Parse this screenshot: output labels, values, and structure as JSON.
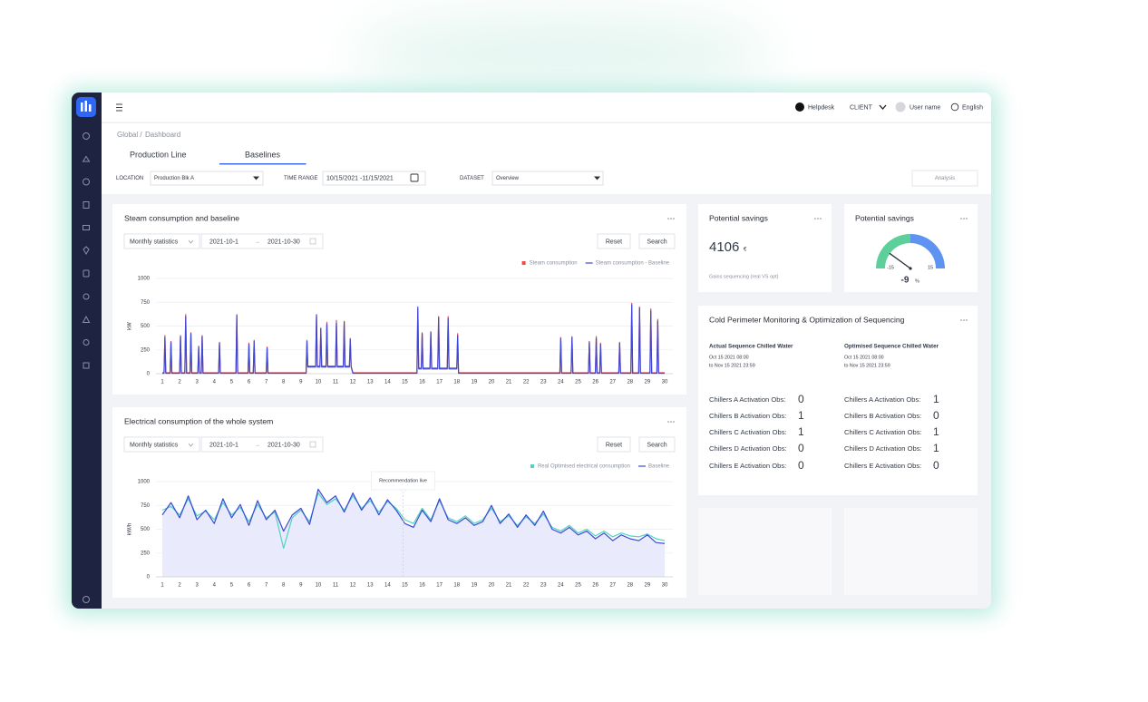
{
  "header": {
    "helpdesk": "Helpdesk",
    "client": "CLIENT",
    "user": "User name",
    "language": "English"
  },
  "breadcrumb": [
    "Global /",
    "Dashboard"
  ],
  "tabs": [
    "Production Line",
    "Baselines"
  ],
  "active_tab": 1,
  "filters": {
    "location_label": "LOCATION",
    "location": "Production Blk A",
    "time_label": "TIME RANGE",
    "time": "10/15/2021 -11/15/2021",
    "dataset_label": "DATASET",
    "dataset": "Overview",
    "analysis": "Analysis"
  },
  "savings": {
    "title": "Potential savings",
    "value": 4106,
    "unit": "€",
    "note": "Gains sequencing (real VS opt)"
  },
  "chart_data": [
    {
      "type": "line",
      "title": "Steam consumption and baseline",
      "controls": {
        "period": "Monthly statistics",
        "start": "2021-10-1",
        "separator": "→",
        "end": "2021-10-30",
        "reset": "Reset",
        "search": "Search"
      },
      "y_label": "kW",
      "legend": "top-right",
      "grid": true,
      "xlim": [
        1,
        30
      ],
      "xticks": [
        1,
        2,
        3,
        4,
        5,
        6,
        7,
        8,
        9,
        10,
        11,
        12,
        13,
        14,
        15,
        16,
        17,
        18,
        19,
        20,
        21,
        22,
        23,
        24,
        25,
        26,
        27,
        28,
        29,
        30
      ],
      "ylim": [
        0,
        1000
      ],
      "yticks": [
        0,
        250,
        500,
        750,
        1000
      ],
      "x": [
        1,
        1.1,
        1.15,
        1.2,
        1.45,
        1.5,
        1.55,
        2.0,
        2.05,
        2.1,
        2.3,
        2.35,
        2.4,
        2.6,
        2.65,
        2.7,
        3.05,
        3.1,
        3.15,
        3.25,
        3.3,
        3.35,
        4.25,
        4.3,
        4.35,
        5.25,
        5.3,
        5.35,
        5.95,
        6.0,
        6.05,
        6.25,
        6.3,
        6.35,
        7.0,
        7.05,
        7.1,
        9.3,
        9.35,
        9.4,
        9.85,
        9.9,
        9.95,
        10.1,
        10.15,
        10.2,
        10.45,
        10.5,
        10.55,
        11.0,
        11.05,
        11.1,
        11.45,
        11.5,
        11.55,
        11.8,
        11.85,
        11.9,
        12.0,
        15.6,
        15.7,
        15.75,
        15.8,
        15.95,
        16.0,
        16.05,
        16.45,
        16.5,
        16.55,
        16.9,
        16.95,
        17.0,
        17.45,
        17.5,
        17.55,
        18.0,
        18.05,
        18.1,
        23.95,
        24.0,
        24.05,
        24.6,
        24.65,
        24.7,
        25.6,
        25.65,
        25.7,
        26.0,
        26.05,
        26.1,
        26.25,
        26.3,
        26.35,
        27.35,
        27.4,
        27.45,
        28.05,
        28.1,
        28.15,
        28.5,
        28.55,
        28.6,
        29.15,
        29.2,
        29.25,
        29.55,
        29.6,
        29.65,
        30
      ],
      "series": [
        {
          "name": "Steam consumption",
          "color": "#ee4d45",
          "legend_marker": "square",
          "values": [
            10,
            10,
            400,
            10,
            10,
            340,
            10,
            10,
            400,
            10,
            10,
            620,
            10,
            10,
            430,
            10,
            10,
            290,
            10,
            10,
            400,
            10,
            10,
            330,
            10,
            10,
            620,
            10,
            10,
            320,
            10,
            10,
            350,
            10,
            10,
            280,
            10,
            10,
            350,
            80,
            80,
            600,
            80,
            80,
            480,
            80,
            80,
            540,
            80,
            80,
            560,
            80,
            80,
            550,
            80,
            80,
            370,
            80,
            10,
            10,
            10,
            680,
            60,
            60,
            430,
            60,
            60,
            430,
            60,
            60,
            600,
            60,
            60,
            600,
            60,
            60,
            420,
            10,
            10,
            380,
            10,
            10,
            390,
            10,
            10,
            340,
            10,
            10,
            390,
            10,
            10,
            320,
            10,
            10,
            330,
            10,
            10,
            740,
            10,
            10,
            700,
            10,
            10,
            680,
            10,
            10,
            570,
            10,
            10
          ]
        },
        {
          "name": "Steam consumption - Baseline",
          "color": "#3d48d6",
          "legend_marker": "line",
          "values": [
            5,
            5,
            380,
            5,
            5,
            330,
            5,
            5,
            390,
            5,
            5,
            600,
            5,
            5,
            420,
            5,
            5,
            280,
            5,
            5,
            390,
            5,
            5,
            320,
            5,
            5,
            610,
            5,
            5,
            310,
            5,
            5,
            340,
            5,
            5,
            270,
            5,
            5,
            340,
            70,
            70,
            620,
            70,
            70,
            470,
            70,
            70,
            520,
            70,
            70,
            530,
            70,
            70,
            540,
            70,
            70,
            360,
            70,
            5,
            5,
            5,
            700,
            50,
            50,
            420,
            50,
            50,
            440,
            50,
            50,
            590,
            50,
            50,
            580,
            50,
            50,
            400,
            5,
            5,
            370,
            5,
            5,
            380,
            5,
            5,
            330,
            5,
            5,
            370,
            5,
            5,
            310,
            5,
            5,
            320,
            5,
            5,
            720,
            5,
            5,
            690,
            5,
            5,
            660,
            5,
            5,
            550,
            5,
            5
          ]
        }
      ]
    },
    {
      "type": "line",
      "title": "Electrical consumption of the whole system",
      "controls": {
        "period": "Monthly statistics",
        "start": "2021-10-1",
        "separator": "→",
        "end": "2021-10-30",
        "reset": "Reset",
        "search": "Search"
      },
      "y_label": "kW/h",
      "legend": "top-right",
      "grid": true,
      "xlim": [
        1,
        30
      ],
      "xticks": [
        1,
        2,
        3,
        4,
        5,
        6,
        7,
        8,
        9,
        10,
        11,
        12,
        13,
        14,
        15,
        16,
        17,
        18,
        19,
        20,
        21,
        22,
        23,
        24,
        25,
        26,
        27,
        28,
        29,
        30
      ],
      "ylim": [
        0,
        1000
      ],
      "yticks": [
        0,
        250,
        500,
        750,
        1000
      ],
      "annotations": [
        {
          "text": "Recommendation live",
          "x": 14.9
        }
      ],
      "x": [
        1,
        1.5,
        2,
        2.5,
        3,
        3.5,
        4,
        4.5,
        5,
        5.5,
        6,
        6.5,
        7,
        7.5,
        8,
        8.5,
        9,
        9.5,
        10,
        10.5,
        11,
        11.5,
        12,
        12.5,
        13,
        13.5,
        14,
        14.5,
        15,
        15.5,
        16,
        16.5,
        17,
        17.5,
        18,
        18.5,
        19,
        19.5,
        20,
        20.5,
        21,
        21.5,
        22,
        22.5,
        23,
        23.5,
        24,
        24.5,
        25,
        25.5,
        26,
        26.5,
        27,
        27.5,
        28,
        28.5,
        29,
        29.5,
        30
      ],
      "series": [
        {
          "name": "Real Optimised electrical consumption",
          "color": "#4fd3c2",
          "legend_marker": "square",
          "values": [
            700,
            740,
            650,
            820,
            640,
            690,
            600,
            780,
            650,
            730,
            580,
            760,
            620,
            680,
            300,
            620,
            700,
            580,
            880,
            760,
            820,
            700,
            850,
            720,
            800,
            680,
            790,
            720,
            600,
            560,
            720,
            600,
            800,
            620,
            580,
            640,
            560,
            600,
            720,
            580,
            640,
            540,
            630,
            560,
            660,
            520,
            480,
            540,
            460,
            500,
            430,
            480,
            420,
            460,
            430,
            420,
            450,
            400,
            380
          ]
        },
        {
          "name": "Baseline",
          "color": "#3d48d6",
          "legend_marker": "line",
          "fill": "#e4e6fb",
          "values": [
            650,
            780,
            620,
            850,
            600,
            700,
            560,
            820,
            620,
            760,
            540,
            800,
            600,
            700,
            480,
            650,
            720,
            550,
            920,
            780,
            850,
            680,
            880,
            700,
            830,
            650,
            810,
            700,
            560,
            520,
            700,
            580,
            820,
            600,
            560,
            620,
            540,
            580,
            750,
            560,
            660,
            520,
            650,
            540,
            690,
            500,
            460,
            520,
            440,
            480,
            400,
            460,
            380,
            440,
            400,
            380,
            440,
            360,
            350
          ]
        }
      ]
    },
    {
      "type": "gauge",
      "title": "Potential savings",
      "value": -9,
      "unit": "%",
      "ylim": [
        -15,
        15
      ],
      "yticks": [
        -15,
        15
      ],
      "bands": [
        {
          "from": -15,
          "to": 0,
          "color": "#5ccf9b"
        },
        {
          "from": 0,
          "to": 15,
          "color": "#5e93f2"
        }
      ]
    }
  ],
  "cold": {
    "title": "Cold Perimeter Monitoring & Optimization of Sequencing",
    "columns": [
      {
        "heading": "Actual Sequence Chilled Water",
        "from": "Oct 15 2021 08:00",
        "to": "to Nov 15 2021 23:59",
        "rows": [
          {
            "label": "Chillers A Activation Obs:",
            "value": 0,
            "color": "#4fd6c4"
          },
          {
            "label": "Chillers B Activation Obs:",
            "value": 1,
            "color": "#f0584f"
          },
          {
            "label": "Chillers C Activation Obs:",
            "value": 1,
            "color": "#222222"
          },
          {
            "label": "Chillers D Activation Obs:",
            "value": 0,
            "color": "#4a7ef0"
          },
          {
            "label": "Chillers E Activation Obs:",
            "value": 0,
            "color": "#222222"
          }
        ]
      },
      {
        "heading": "Optimised Sequence Chilled Water",
        "from": "Oct 15 2021 08:00",
        "to": "to Nov 15 2021 23:59",
        "rows": [
          {
            "label": "Chillers A Activation Obs:",
            "value": 1,
            "color": "#4fd6c4"
          },
          {
            "label": "Chillers B Activation Obs:",
            "value": 0,
            "color": "#f0584f"
          },
          {
            "label": "Chillers C Activation Obs:",
            "value": 1,
            "color": "#222222"
          },
          {
            "label": "Chillers D Activation Obs:",
            "value": 1,
            "color": "#4a7ef0"
          },
          {
            "label": "Chillers E Activation Obs:",
            "value": 0,
            "color": "#222222"
          }
        ]
      }
    ]
  }
}
